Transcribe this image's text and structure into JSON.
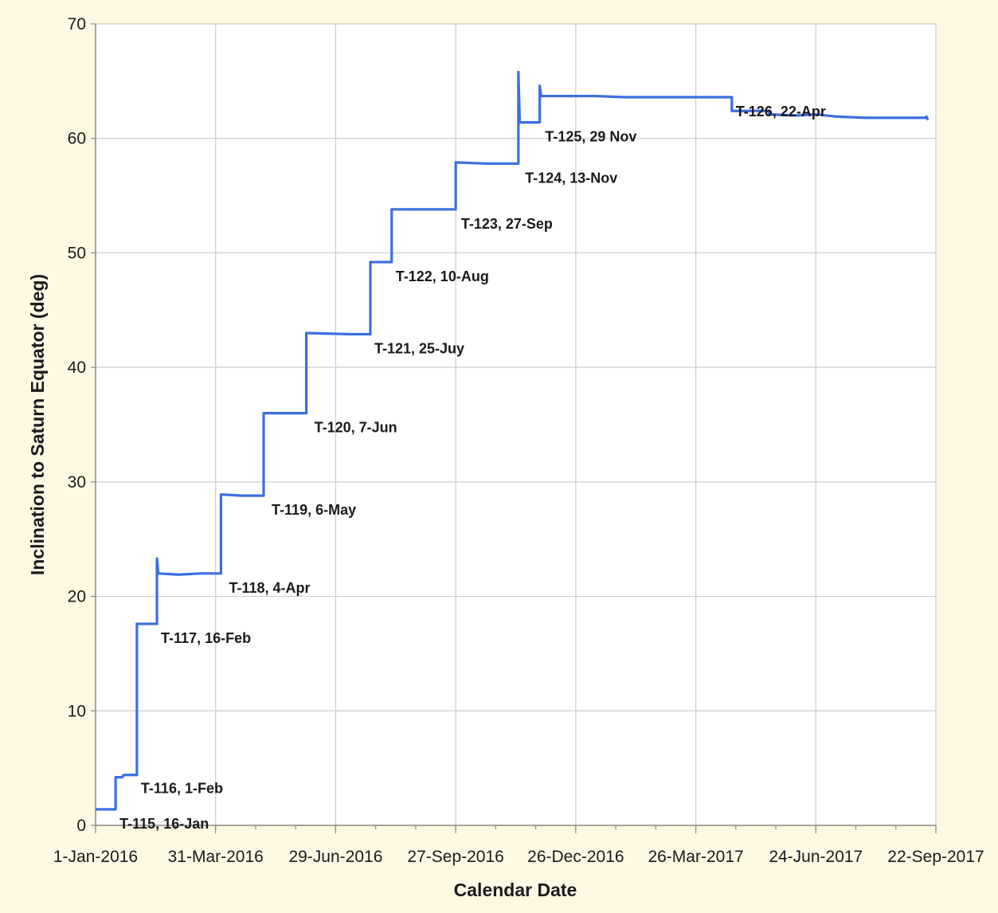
{
  "chart_data": {
    "type": "line",
    "title": "",
    "xlabel": "Calendar Date",
    "ylabel": "Inclination to Saturn Equator (deg)",
    "xlim": [
      "2016-01-01",
      "2017-09-22"
    ],
    "ylim": [
      0,
      70
    ],
    "grid": true,
    "x_ticks": [
      "1-Jan-2016",
      "31-Mar-2016",
      "29-Jun-2016",
      "27-Sep-2016",
      "26-Dec-2016",
      "26-Mar-2017",
      "24-Jun-2017",
      "22-Sep-2017"
    ],
    "y_ticks": [
      "0",
      "10",
      "20",
      "30",
      "40",
      "50",
      "60",
      "70"
    ],
    "colors": {
      "series": "#3b6fe0",
      "background": "#fdf9e3",
      "plot_area": "#ffffff",
      "grid": "#cccccc"
    },
    "series": [
      {
        "points": [
          [
            "2016-01-01",
            1.4
          ],
          [
            "2016-01-16",
            1.4
          ],
          [
            "2016-01-16",
            4.2
          ],
          [
            "2016-01-21",
            4.2
          ],
          [
            "2016-01-22",
            4.4
          ],
          [
            "2016-02-01",
            4.4
          ],
          [
            "2016-02-01",
            17.6
          ],
          [
            "2016-02-16",
            17.6
          ],
          [
            "2016-02-16",
            23.3
          ],
          [
            "2016-02-17",
            22.0
          ],
          [
            "2016-03-03",
            21.9
          ],
          [
            "2016-03-20",
            22.0
          ],
          [
            "2016-04-04",
            22.0
          ],
          [
            "2016-04-04",
            28.9
          ],
          [
            "2016-04-20",
            28.8
          ],
          [
            "2016-05-06",
            28.8
          ],
          [
            "2016-05-06",
            36.0
          ],
          [
            "2016-06-07",
            36.0
          ],
          [
            "2016-06-07",
            43.0
          ],
          [
            "2016-07-10",
            42.9
          ],
          [
            "2016-07-25",
            42.9
          ],
          [
            "2016-07-25",
            49.2
          ],
          [
            "2016-08-10",
            49.2
          ],
          [
            "2016-08-10",
            53.8
          ],
          [
            "2016-09-05",
            53.8
          ],
          [
            "2016-09-27",
            53.8
          ],
          [
            "2016-09-27",
            57.9
          ],
          [
            "2016-10-20",
            57.8
          ],
          [
            "2016-11-13",
            57.8
          ],
          [
            "2016-11-13",
            65.8
          ],
          [
            "2016-11-14",
            61.4
          ],
          [
            "2016-11-29",
            61.4
          ],
          [
            "2016-11-29",
            64.6
          ],
          [
            "2016-11-30",
            63.7
          ],
          [
            "2016-12-15",
            63.7
          ],
          [
            "2017-01-10",
            63.7
          ],
          [
            "2017-02-01",
            63.6
          ],
          [
            "2017-03-01",
            63.6
          ],
          [
            "2017-04-05",
            63.6
          ],
          [
            "2017-04-22",
            63.6
          ],
          [
            "2017-04-22",
            62.4
          ],
          [
            "2017-05-10",
            62.4
          ],
          [
            "2017-05-20",
            62.4
          ],
          [
            "2017-05-20",
            62.1
          ],
          [
            "2017-06-10",
            62.0
          ],
          [
            "2017-06-24",
            62.1
          ],
          [
            "2017-07-10",
            61.9
          ],
          [
            "2017-08-01",
            61.8
          ],
          [
            "2017-08-25",
            61.8
          ],
          [
            "2017-09-14",
            61.8
          ],
          [
            "2017-09-15",
            61.9
          ],
          [
            "2017-09-16",
            61.6
          ]
        ]
      }
    ],
    "annotations": [
      {
        "text": "T-115, 16-Jan",
        "x": "2016-01-19",
        "y": 1.4
      },
      {
        "text": "T-116, 1-Feb",
        "x": "2016-02-04",
        "y": 4.5
      },
      {
        "text": "T-117, 16-Feb",
        "x": "2016-02-19",
        "y": 17.6
      },
      {
        "text": "T-118, 4-Apr",
        "x": "2016-04-10",
        "y": 22.0
      },
      {
        "text": "T-119, 6-May",
        "x": "2016-05-12",
        "y": 28.8
      },
      {
        "text": "T-120, 7-Jun",
        "x": "2016-06-13",
        "y": 36.0
      },
      {
        "text": "T-121, 25-Juy",
        "x": "2016-07-28",
        "y": 42.9
      },
      {
        "text": "T-122, 10-Aug",
        "x": "2016-08-13",
        "y": 49.2
      },
      {
        "text": "T-123, 27-Sep",
        "x": "2016-10-01",
        "y": 53.8
      },
      {
        "text": "T-124, 13-Nov",
        "x": "2016-11-18",
        "y": 57.8
      },
      {
        "text": "T-125, 29 Nov",
        "x": "2016-12-03",
        "y": 61.4
      },
      {
        "text": "T-126, 22-Apr",
        "x": "2017-04-25",
        "y": 63.6
      }
    ]
  }
}
